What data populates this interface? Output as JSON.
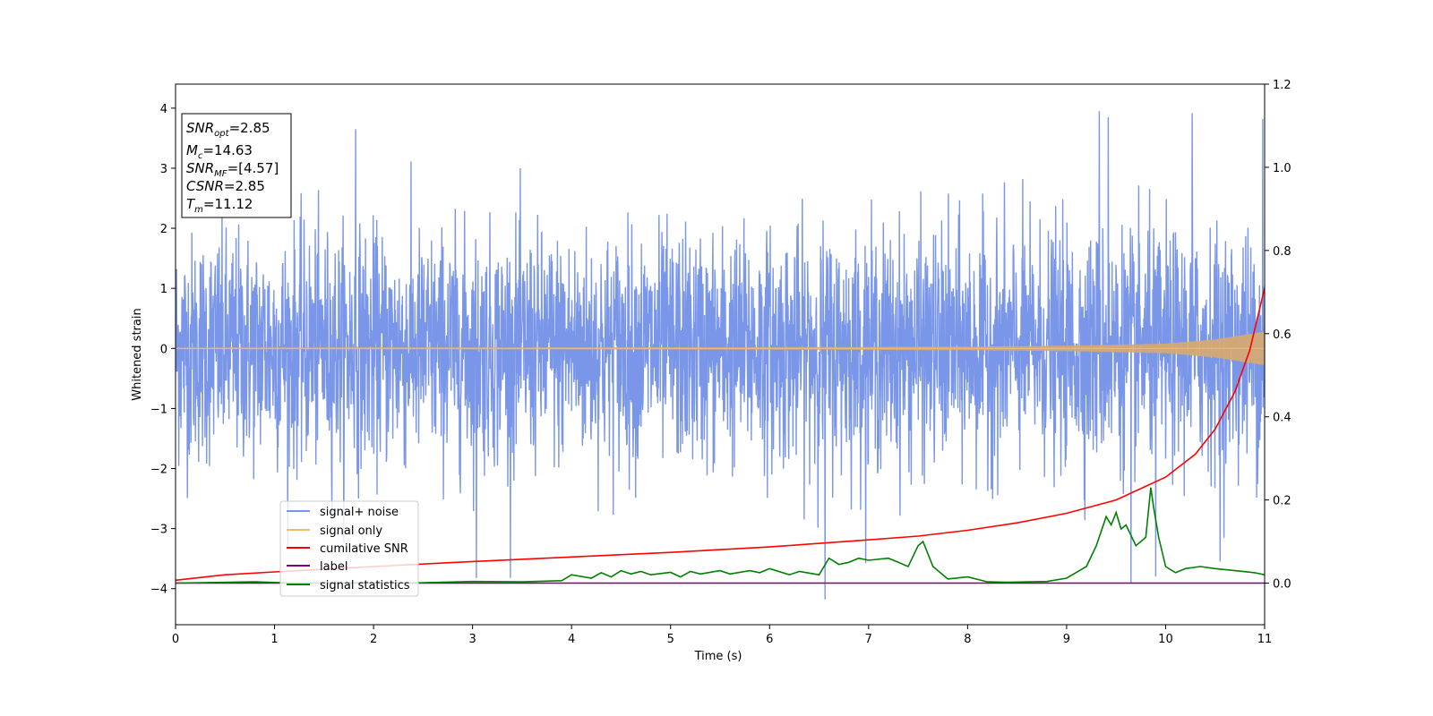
{
  "chart_data": {
    "type": "line",
    "xlabel": "Time (s)",
    "ylabel": "Whitened strain",
    "xlim": [
      0,
      11
    ],
    "ylim_left": [
      -4.6,
      4.4
    ],
    "ylim_right": [
      -0.1,
      1.2
    ],
    "x_ticks": [
      "0",
      "1",
      "2",
      "3",
      "4",
      "5",
      "6",
      "7",
      "8",
      "9",
      "10",
      "11"
    ],
    "y_ticks_left": [
      "−4",
      "−3",
      "−2",
      "−1",
      "0",
      "1",
      "2",
      "3",
      "4"
    ],
    "y_ticks_right": [
      "0.0",
      "0.2",
      "0.4",
      "0.6",
      "0.8",
      "1.0",
      "1.2"
    ],
    "grid": false,
    "legend_position": "lower-left",
    "stats_box": {
      "snr_opt": {
        "name": "SNR",
        "sub": "opt",
        "value": "=2.85"
      },
      "mc": {
        "name": "M",
        "sub": "c",
        "value": "=14.63"
      },
      "snr_mf": {
        "name": "SNR",
        "sub": "MF",
        "value": "=[4.57]"
      },
      "csnr": {
        "name": "CSNR",
        "sub": "",
        "value": "=2.85"
      },
      "tm": {
        "name": "T",
        "sub": "m",
        "value": "=11.12"
      }
    },
    "series": [
      {
        "name": "signal+ noise",
        "axis": "left",
        "color": "#7a96e8",
        "description_values": {
          "noise_std": 0.95,
          "clip": [
            -4.2,
            4.0
          ],
          "spikes": [
            [
              1.82,
              3.65
            ],
            [
              3.04,
              -3.82
            ],
            [
              6.56,
              -4.18
            ],
            [
              9.33,
              3.95
            ],
            [
              9.42,
              3.85
            ],
            [
              9.65,
              -3.92
            ],
            [
              9.9,
              -3.8
            ],
            [
              10.27,
              3.92
            ],
            [
              10.55,
              -3.55
            ],
            [
              10.98,
              3.82
            ]
          ]
        }
      },
      {
        "name": "signal only",
        "axis": "left",
        "color": "#f2bb6b",
        "envelope": {
          "x": [
            0,
            6,
            8,
            9,
            10,
            10.5,
            11
          ],
          "amplitude": [
            0.012,
            0.02,
            0.03,
            0.045,
            0.08,
            0.15,
            0.28
          ]
        }
      },
      {
        "name": "cumilative SNR",
        "axis": "right",
        "color": "#ff0000",
        "x": [
          0,
          0.5,
          1,
          2,
          3,
          4,
          5,
          6,
          7,
          7.5,
          8,
          8.5,
          9,
          9.5,
          10,
          10.3,
          10.5,
          10.7,
          10.85,
          11
        ],
        "y": [
          0.007,
          0.02,
          0.027,
          0.04,
          0.052,
          0.063,
          0.074,
          0.087,
          0.104,
          0.113,
          0.127,
          0.145,
          0.168,
          0.2,
          0.255,
          0.31,
          0.37,
          0.46,
          0.56,
          0.71
        ]
      },
      {
        "name": "label",
        "axis": "right",
        "color": "#800080",
        "x": [
          0,
          11
        ],
        "y": [
          0,
          0
        ]
      },
      {
        "name": "signal statistics",
        "axis": "right",
        "color": "#008000",
        "x": [
          0,
          0.8,
          1.2,
          2.5,
          3.0,
          3.5,
          3.9,
          4.0,
          4.2,
          4.3,
          4.4,
          4.5,
          4.6,
          4.7,
          4.8,
          5.0,
          5.1,
          5.2,
          5.3,
          5.5,
          5.6,
          5.8,
          5.9,
          6.0,
          6.2,
          6.3,
          6.5,
          6.6,
          6.7,
          6.8,
          6.9,
          7.0,
          7.2,
          7.3,
          7.4,
          7.5,
          7.55,
          7.65,
          7.8,
          8.0,
          8.2,
          8.4,
          8.8,
          9.0,
          9.2,
          9.3,
          9.4,
          9.45,
          9.5,
          9.55,
          9.6,
          9.7,
          9.8,
          9.85,
          9.88,
          9.93,
          10.0,
          10.1,
          10.2,
          10.35,
          10.5,
          10.7,
          10.9,
          11.0
        ],
        "y": [
          0.0,
          0.003,
          0.0,
          0.001,
          0.004,
          0.003,
          0.006,
          0.02,
          0.012,
          0.025,
          0.015,
          0.03,
          0.022,
          0.028,
          0.02,
          0.026,
          0.015,
          0.028,
          0.022,
          0.03,
          0.022,
          0.03,
          0.025,
          0.035,
          0.02,
          0.028,
          0.02,
          0.06,
          0.045,
          0.05,
          0.06,
          0.055,
          0.06,
          0.05,
          0.04,
          0.09,
          0.1,
          0.04,
          0.01,
          0.015,
          0.003,
          0.002,
          0.004,
          0.012,
          0.04,
          0.09,
          0.16,
          0.14,
          0.17,
          0.13,
          0.14,
          0.09,
          0.11,
          0.23,
          0.18,
          0.11,
          0.04,
          0.025,
          0.035,
          0.04,
          0.035,
          0.03,
          0.025,
          0.02
        ]
      }
    ]
  }
}
